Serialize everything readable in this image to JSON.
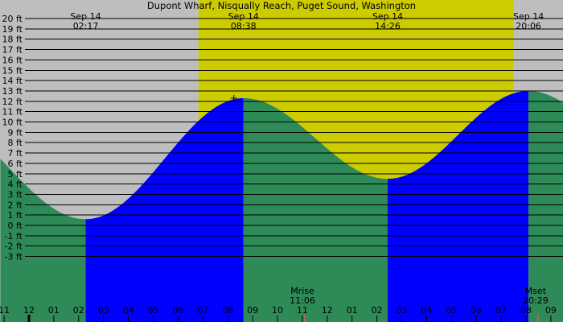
{
  "chart_data": {
    "type": "area",
    "title": "Dupont Wharf, Nisqually Reach, Puget Sound, Washington",
    "y_unit": "ft",
    "ylim": [
      -4,
      20.5
    ],
    "y_ticks": [
      20,
      19,
      18,
      17,
      16,
      15,
      14,
      13,
      12,
      11,
      10,
      9,
      8,
      7,
      6,
      5,
      4,
      3,
      2,
      1,
      0,
      -1,
      -2,
      -3
    ],
    "y_tick_labels": [
      "20 ft",
      "19 ft",
      "18 ft",
      "17 ft",
      "16 ft",
      "15 ft",
      "14 ft",
      "13 ft",
      "12 ft",
      "11 ft",
      "10 ft",
      "9 ft",
      "8 ft",
      "7 ft",
      "6 ft",
      "5 ft",
      "4 ft",
      "3 ft",
      "2 ft",
      "1 ft",
      "0 ft",
      "-1 ft",
      "-2 ft",
      "-3 ft"
    ],
    "x_unit": "hour of day (Sep 13 23:00 = -1)",
    "x_range": [
      -1.15,
      33.6
    ],
    "hour_ticks": [
      {
        "h": -1,
        "label": "11"
      },
      {
        "h": 0,
        "label": "12"
      },
      {
        "h": 1,
        "label": "01"
      },
      {
        "h": 2,
        "label": "02"
      },
      {
        "h": 3,
        "label": "03"
      },
      {
        "h": 4,
        "label": "04"
      },
      {
        "h": 5,
        "label": "05"
      },
      {
        "h": 6,
        "label": "06"
      },
      {
        "h": 7,
        "label": "07"
      },
      {
        "h": 8,
        "label": "08"
      },
      {
        "h": 9,
        "label": "09"
      },
      {
        "h": 10,
        "label": "10"
      },
      {
        "h": 11,
        "label": "11"
      },
      {
        "h": 12,
        "label": "12"
      },
      {
        "h": 13,
        "label": "01"
      },
      {
        "h": 14,
        "label": "02"
      },
      {
        "h": 15,
        "label": "03"
      },
      {
        "h": 16,
        "label": "04"
      },
      {
        "h": 17,
        "label": "05"
      },
      {
        "h": 18,
        "label": "06"
      },
      {
        "h": 19,
        "label": "07"
      },
      {
        "h": 20,
        "label": "08"
      },
      {
        "h": 21,
        "label": "09"
      }
    ],
    "daylight": {
      "sunrise_h": 6.82,
      "sunset_h": 19.5
    },
    "tide_events": [
      {
        "date": "Sep 14",
        "time": "02:17",
        "h": 2.283,
        "height": 0.6,
        "kind": "low"
      },
      {
        "date": "Sep 14",
        "time": "08:38",
        "h": 8.633,
        "height": 12.3,
        "kind": "high"
      },
      {
        "date": "Sep 14",
        "time": "14:26",
        "h": 14.433,
        "height": 4.5,
        "kind": "low"
      },
      {
        "date": "Sep 14",
        "time": "20:06",
        "h": 20.1,
        "height": 13.0,
        "kind": "high"
      }
    ],
    "curve_endpoints": {
      "start": {
        "h": -1.15,
        "height": 5.3
      },
      "end": {
        "h": 21.6,
        "height": 11.9
      }
    },
    "moon_events": [
      {
        "label": "Mrise",
        "time": "11:06",
        "h": 11.1
      },
      {
        "label": "Mset",
        "time": "20:29",
        "h": 20.483
      }
    ],
    "colors": {
      "night": "#bebebe",
      "day": "#cccc00",
      "falling": "#2e8b57",
      "rising": "#0000ff",
      "moon_marker": "#c06040",
      "axis_marker": "#000000"
    }
  }
}
